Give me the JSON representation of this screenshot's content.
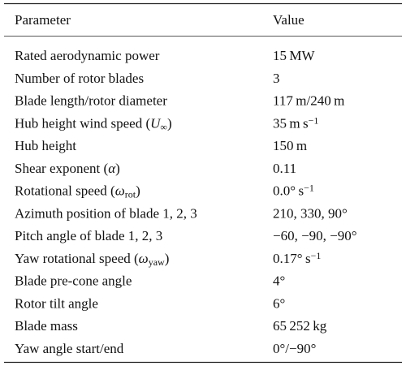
{
  "table": {
    "header": [
      "Parameter",
      "Value"
    ],
    "rows": [
      [
        "Rated aerodynamic power",
        "15 MW"
      ],
      [
        "Number of rotor blades",
        "3"
      ],
      [
        "Blade length/rotor diameter",
        "117 m/240 m"
      ],
      [
        [
          "Hub height wind speed (",
          {
            "text": "U",
            "format": "italic"
          },
          {
            "text": "∞",
            "format": "sub"
          },
          ")"
        ],
        [
          "35 m s",
          {
            "text": "−1",
            "format": "sup"
          }
        ]
      ],
      [
        "Hub height",
        "150 m"
      ],
      [
        [
          "Shear exponent (",
          {
            "text": "α",
            "format": "italic"
          },
          ")"
        ],
        "0.11"
      ],
      [
        [
          "Rotational speed (",
          {
            "text": "ω",
            "format": "italic"
          },
          {
            "text": "rot",
            "format": "sub"
          },
          ")"
        ],
        [
          "0.0° s",
          {
            "text": "−1",
            "format": "sup"
          }
        ]
      ],
      [
        "Azimuth position of blade 1, 2, 3",
        "210, 330, 90°"
      ],
      [
        "Pitch angle of blade 1, 2, 3",
        "−60, −90, −90°"
      ],
      [
        [
          "Yaw rotational speed (",
          {
            "text": "ω",
            "format": "italic"
          },
          {
            "text": "yaw",
            "format": "sub"
          },
          ")"
        ],
        [
          "0.17° s",
          {
            "text": "−1",
            "format": "sup"
          }
        ]
      ],
      [
        "Blade pre-cone angle",
        "4°"
      ],
      [
        "Rotor tilt angle",
        "6°"
      ],
      [
        "Blade mass",
        "65 252 kg"
      ],
      [
        "Yaw angle start/end",
        "0°/−90°"
      ]
    ]
  }
}
